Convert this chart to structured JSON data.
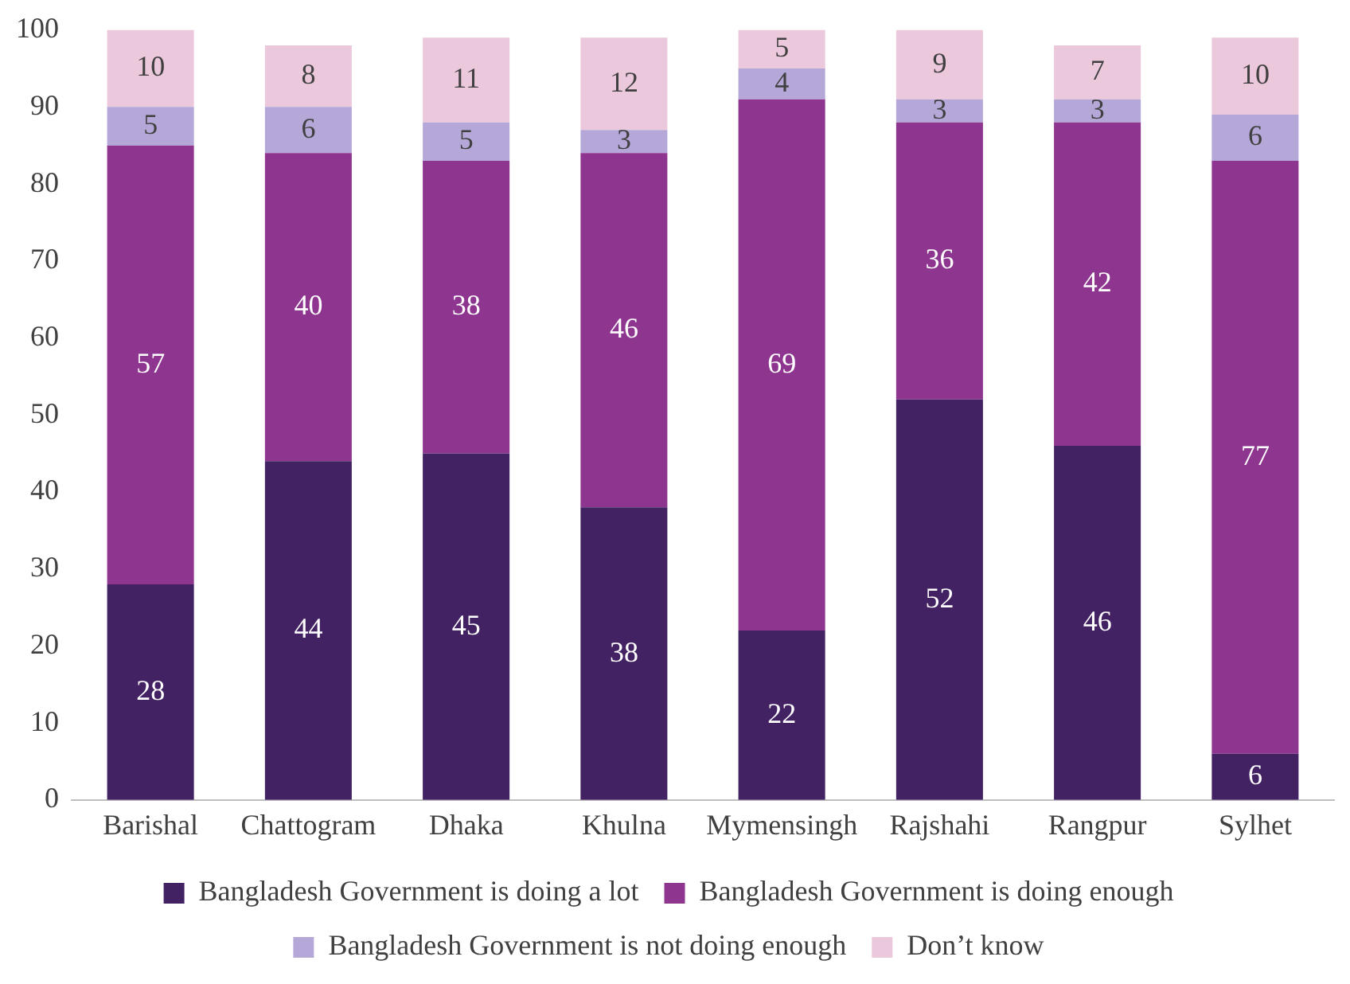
{
  "chart_data": {
    "type": "bar",
    "stacked": true,
    "categories": [
      "Barishal",
      "Chattogram",
      "Dhaka",
      "Khulna",
      "Mymensingh",
      "Rajshahi",
      "Rangpur",
      "Sylhet"
    ],
    "series": [
      {
        "name": "Bangladesh Government is doing a lot",
        "color": "#432263",
        "values": [
          28,
          44,
          45,
          38,
          22,
          52,
          46,
          6
        ]
      },
      {
        "name": "Bangladesh Government is doing enough",
        "color": "#8e3590",
        "values": [
          57,
          40,
          38,
          46,
          69,
          36,
          42,
          77
        ]
      },
      {
        "name": "Bangladesh Government is not doing enough",
        "color": "#b5a8d8",
        "values": [
          5,
          6,
          5,
          3,
          4,
          3,
          3,
          6
        ]
      },
      {
        "name": "Don’t know",
        "color": "#ecc8dc",
        "values": [
          10,
          8,
          11,
          12,
          5,
          9,
          7,
          10
        ]
      }
    ],
    "ylim": [
      0,
      100
    ],
    "yticks": [
      0,
      10,
      20,
      30,
      40,
      50,
      60,
      70,
      80,
      90,
      100
    ],
    "grid": false,
    "legend": "bottom",
    "data_labels": true
  }
}
